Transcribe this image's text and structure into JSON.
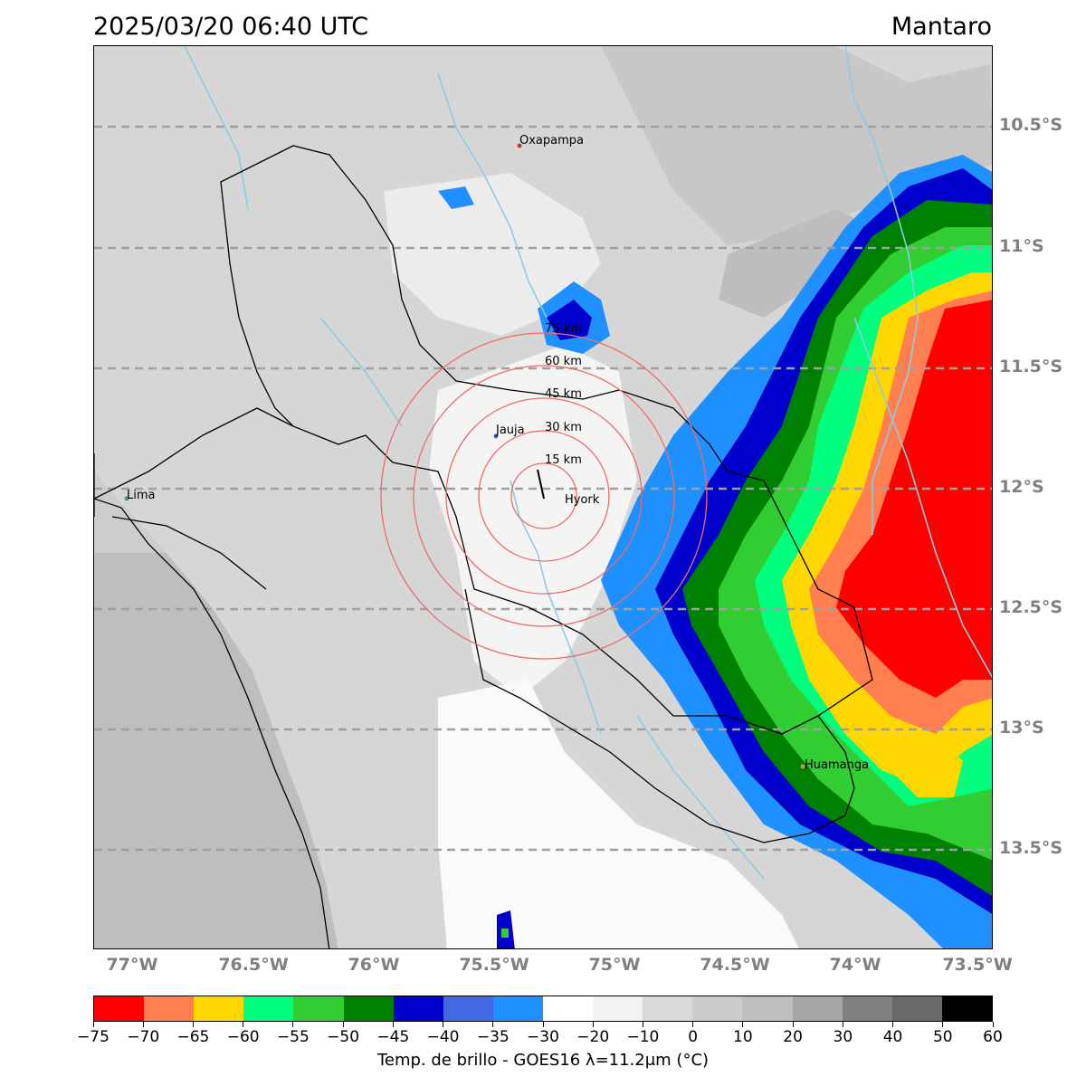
{
  "header": {
    "timestamp": "2025/03/20 06:40 UTC",
    "region": "Mantaro"
  },
  "map": {
    "lat_labels": [
      "10.5°S",
      "11°S",
      "11.5°S",
      "12°S",
      "12.5°S",
      "13°S",
      "13.5°S"
    ],
    "lon_labels": [
      "77°W",
      "76.5°W",
      "76°W",
      "75.5°W",
      "75°W",
      "74.5°W",
      "74°W",
      "73.5°W"
    ],
    "cities": [
      {
        "name": "Oxapampa",
        "dot_color": "#cc3333"
      },
      {
        "name": "Jauja",
        "dot_color": "#4466cc"
      },
      {
        "name": "Hyork",
        "dot_color": "#333333"
      },
      {
        "name": "Lima",
        "dot_color": "#33aa66"
      },
      {
        "name": "Huamanga",
        "dot_color": "#cc9933"
      }
    ],
    "range_rings": [
      "15 km",
      "30 km",
      "45 km",
      "60 km",
      "75 km"
    ],
    "colors": {
      "ring": "#f06a6a",
      "river": "#8ecae6",
      "gridline": "#a0a0a0",
      "border": "#000000"
    }
  },
  "colorbar": {
    "colors": [
      "#ff0000",
      "#ff7f50",
      "#ffd700",
      "#00ff7f",
      "#32cd32",
      "#008000",
      "#0000cd",
      "#4169e1",
      "#1e90ff",
      "#ffffff",
      "#f2f2f2",
      "#d9d9d9",
      "#cccccc",
      "#bfbfbf",
      "#a6a6a6",
      "#808080",
      "#696969",
      "#000000"
    ],
    "tick_labels": [
      "−75",
      "−70",
      "−65",
      "−60",
      "−55",
      "−50",
      "−45",
      "−40",
      "−35",
      "−30",
      "−20",
      "−10",
      "0",
      "10",
      "20",
      "30",
      "40",
      "50",
      "60"
    ],
    "title": "Temp. de brillo - GOES16 λ=11.2μm (°C)"
  }
}
